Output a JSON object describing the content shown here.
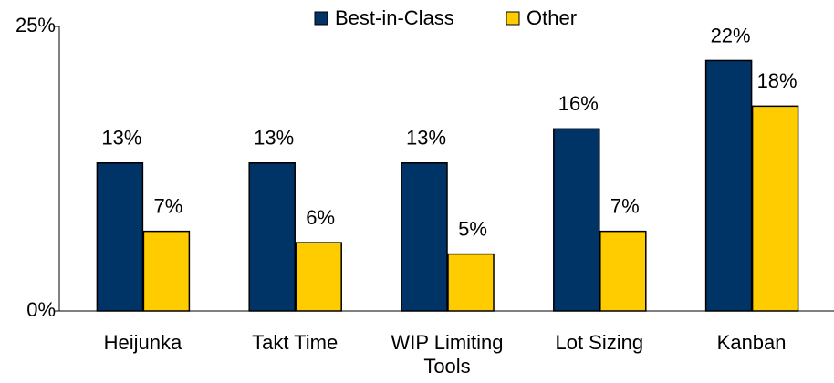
{
  "chart_data": {
    "type": "bar",
    "categories": [
      "Heijunka",
      "Takt Time",
      "WIP Limiting Tools",
      "Lot Sizing",
      "Kanban"
    ],
    "series": [
      {
        "name": "Best-in-Class",
        "color": "#003366",
        "values": [
          13,
          13,
          13,
          16,
          22
        ],
        "value_labels": [
          "13%",
          "13%",
          "13%",
          "16%",
          "22%"
        ]
      },
      {
        "name": "Other",
        "color": "#ffcc00",
        "values": [
          7,
          6,
          5,
          7,
          18
        ],
        "value_labels": [
          "7%",
          "6%",
          "5%",
          "7%",
          "18%"
        ]
      }
    ],
    "ylim": [
      0,
      25
    ],
    "yticks": [
      {
        "value": 0,
        "label": "0%"
      },
      {
        "value": 25,
        "label": "25%"
      }
    ],
    "legend": "top"
  }
}
